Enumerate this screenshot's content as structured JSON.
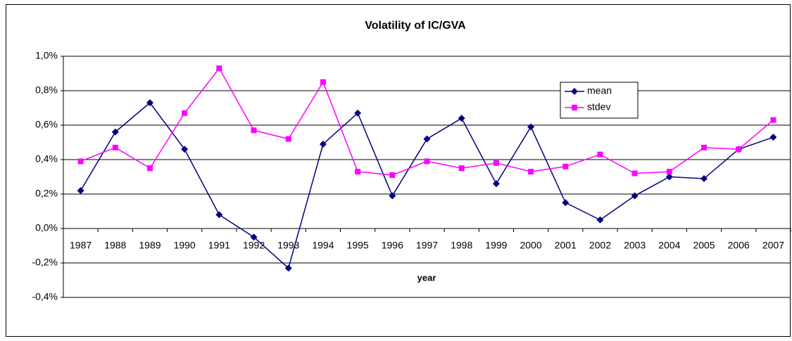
{
  "chart_data": {
    "type": "line",
    "title": "Volatility of IC/GVA",
    "x_label": "year",
    "categories": [
      "1987",
      "1988",
      "1989",
      "1990",
      "1991",
      "1992",
      "1993",
      "1994",
      "1995",
      "1996",
      "1997",
      "1998",
      "1999",
      "2000",
      "2001",
      "2002",
      "2003",
      "2004",
      "2005",
      "2006",
      "2007"
    ],
    "series": [
      {
        "name": "mean",
        "color": "#000080",
        "marker": "diamond",
        "values": [
          0.22,
          0.56,
          0.73,
          0.46,
          0.08,
          -0.05,
          -0.23,
          0.49,
          0.67,
          0.19,
          0.52,
          0.64,
          0.26,
          0.59,
          0.15,
          0.05,
          0.19,
          0.3,
          0.29,
          0.46,
          0.53
        ]
      },
      {
        "name": "stdev",
        "color": "#ff00ff",
        "marker": "square",
        "values": [
          0.39,
          0.47,
          0.35,
          0.67,
          0.93,
          0.57,
          0.52,
          0.85,
          0.33,
          0.31,
          0.39,
          0.35,
          0.38,
          0.33,
          0.36,
          0.43,
          0.32,
          0.33,
          0.47,
          0.46,
          0.63
        ]
      }
    ],
    "ylim": [
      -0.4,
      1.0
    ],
    "yticks": [
      {
        "value": -0.4,
        "label": "-0,4%"
      },
      {
        "value": -0.2,
        "label": "-0,2%"
      },
      {
        "value": 0,
        "label": "0,0%"
      },
      {
        "value": 0.2,
        "label": "0,2%"
      },
      {
        "value": 0.4,
        "label": "0,4%"
      },
      {
        "value": 0.6,
        "label": "0,6%"
      },
      {
        "value": 0.8,
        "label": "0,8%"
      },
      {
        "value": 1.0,
        "label": "1,0%"
      }
    ],
    "grid": true,
    "legend": "upper right"
  }
}
